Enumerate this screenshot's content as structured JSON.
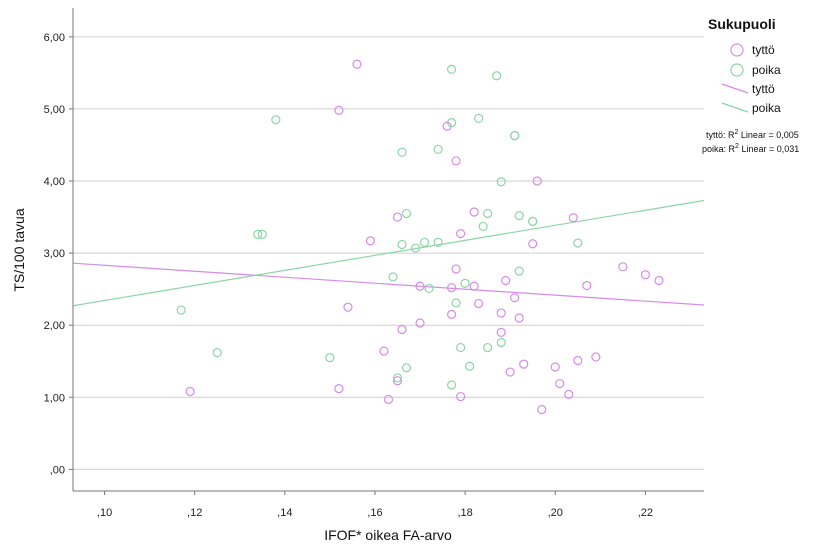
{
  "chart_data": {
    "type": "scatter",
    "xlabel": "IFOF* oikea FA-arvo",
    "ylabel": "TS/100 tavua",
    "xlim": [
      0.093,
      0.233
    ],
    "ylim": [
      -0.3,
      6.4
    ],
    "x_ticks": [
      ",10",
      ",12",
      ",14",
      ",16",
      ",18",
      ",20",
      ",22"
    ],
    "x_tick_values": [
      0.1,
      0.12,
      0.14,
      0.16,
      0.18,
      0.2,
      0.22
    ],
    "y_ticks": [
      ",00",
      "1,00",
      "2,00",
      "3,00",
      "4,00",
      "5,00",
      "6,00"
    ],
    "y_tick_values": [
      0,
      1,
      2,
      3,
      4,
      5,
      6
    ],
    "grid": "horizontal",
    "legend": {
      "title": "Sukupuoli",
      "placement": "right",
      "marker_labels": [
        "tyttö",
        "poika"
      ],
      "line_labels": [
        "tyttö",
        "poika"
      ]
    },
    "r2_annotations": [
      {
        "label": "tyttö: R",
        "sup": "2",
        "rest": " Linear = 0,005"
      },
      {
        "label": "poika: R",
        "sup": "2",
        "rest": " Linear = 0,031"
      }
    ],
    "series": [
      {
        "name": "tyttö",
        "color": "#d68be8",
        "points": [
          [
            0.119,
            1.08
          ],
          [
            0.152,
            4.98
          ],
          [
            0.152,
            1.12
          ],
          [
            0.154,
            2.25
          ],
          [
            0.156,
            5.62
          ],
          [
            0.159,
            3.17
          ],
          [
            0.162,
            1.64
          ],
          [
            0.163,
            0.97
          ],
          [
            0.165,
            3.5
          ],
          [
            0.165,
            1.23
          ],
          [
            0.166,
            1.94
          ],
          [
            0.17,
            2.54
          ],
          [
            0.17,
            2.03
          ],
          [
            0.176,
            4.76
          ],
          [
            0.177,
            2.15
          ],
          [
            0.177,
            2.52
          ],
          [
            0.178,
            4.28
          ],
          [
            0.178,
            2.78
          ],
          [
            0.179,
            1.01
          ],
          [
            0.179,
            3.27
          ],
          [
            0.182,
            3.57
          ],
          [
            0.182,
            2.54
          ],
          [
            0.183,
            2.3
          ],
          [
            0.188,
            2.17
          ],
          [
            0.188,
            1.9
          ],
          [
            0.189,
            2.62
          ],
          [
            0.19,
            1.35
          ],
          [
            0.191,
            2.38
          ],
          [
            0.191,
            4.63
          ],
          [
            0.192,
            2.1
          ],
          [
            0.193,
            1.46
          ],
          [
            0.195,
            3.13
          ],
          [
            0.196,
            4.0
          ],
          [
            0.197,
            0.83
          ],
          [
            0.2,
            1.42
          ],
          [
            0.201,
            1.19
          ],
          [
            0.203,
            1.04
          ],
          [
            0.204,
            3.49
          ],
          [
            0.205,
            1.51
          ],
          [
            0.207,
            2.55
          ],
          [
            0.209,
            1.56
          ],
          [
            0.215,
            2.81
          ],
          [
            0.22,
            2.7
          ],
          [
            0.223,
            2.62
          ]
        ],
        "fit": [
          [
            0.093,
            2.86
          ],
          [
            0.233,
            2.28
          ]
        ]
      },
      {
        "name": "poika",
        "color": "#8ad7a6",
        "points": [
          [
            0.117,
            2.21
          ],
          [
            0.125,
            1.62
          ],
          [
            0.134,
            3.26
          ],
          [
            0.135,
            3.26
          ],
          [
            0.138,
            4.85
          ],
          [
            0.15,
            1.55
          ],
          [
            0.164,
            2.67
          ],
          [
            0.165,
            1.27
          ],
          [
            0.166,
            4.4
          ],
          [
            0.166,
            3.12
          ],
          [
            0.167,
            3.55
          ],
          [
            0.167,
            1.41
          ],
          [
            0.169,
            3.07
          ],
          [
            0.171,
            3.15
          ],
          [
            0.172,
            2.51
          ],
          [
            0.174,
            3.15
          ],
          [
            0.174,
            4.44
          ],
          [
            0.177,
            1.17
          ],
          [
            0.177,
            5.55
          ],
          [
            0.177,
            4.81
          ],
          [
            0.178,
            2.31
          ],
          [
            0.179,
            1.69
          ],
          [
            0.18,
            2.58
          ],
          [
            0.181,
            1.43
          ],
          [
            0.183,
            4.87
          ],
          [
            0.184,
            3.37
          ],
          [
            0.185,
            3.55
          ],
          [
            0.185,
            1.69
          ],
          [
            0.187,
            5.46
          ],
          [
            0.188,
            3.99
          ],
          [
            0.188,
            1.76
          ],
          [
            0.191,
            4.63
          ],
          [
            0.192,
            3.52
          ],
          [
            0.192,
            2.75
          ],
          [
            0.195,
            3.44
          ],
          [
            0.195,
            3.44
          ],
          [
            0.205,
            3.14
          ]
        ],
        "fit": [
          [
            0.093,
            2.27
          ],
          [
            0.233,
            3.73
          ]
        ]
      }
    ]
  }
}
